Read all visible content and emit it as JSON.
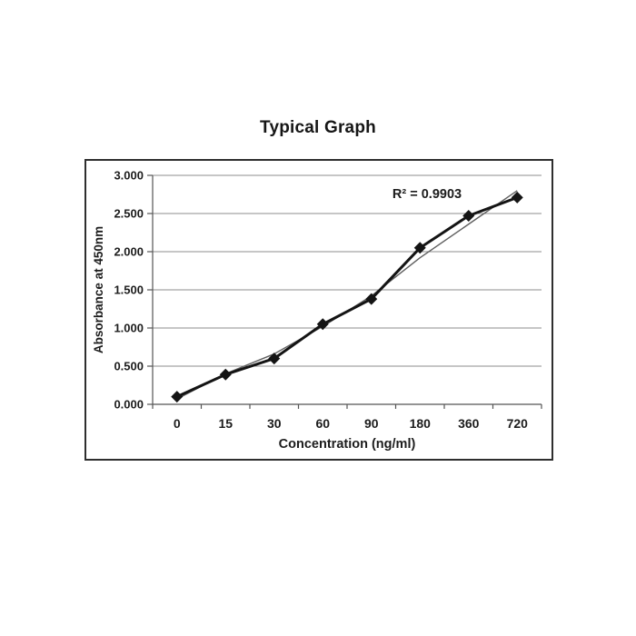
{
  "page_title": "Typical Graph",
  "chart_data": {
    "type": "line",
    "title": "Typical Graph",
    "xlabel": "Concentration (ng/ml)",
    "ylabel": "Absorbance at 450nm",
    "annotation": "R² = 0.9903",
    "categories": [
      "0",
      "15",
      "30",
      "60",
      "90",
      "180",
      "360",
      "720"
    ],
    "series": [
      {
        "name": "Absorbance at 450nm",
        "values": [
          0.1,
          0.39,
          0.6,
          1.05,
          1.38,
          2.05,
          2.47,
          2.71
        ],
        "marker": "diamond",
        "color": "#141414",
        "line_width": 3
      }
    ],
    "trendline": {
      "name": "fit-line",
      "values": [
        0.07,
        0.4,
        0.66,
        1.02,
        1.42,
        1.92,
        2.36,
        2.8
      ],
      "color": "#5f5f5f",
      "line_width": 1.4
    },
    "ylim": [
      0,
      3
    ],
    "ytick_step": 0.5,
    "ytick_labels": [
      "0.000",
      "0.500",
      "1.000",
      "1.500",
      "2.000",
      "2.500",
      "3.000"
    ],
    "grid": true,
    "legend": "none",
    "colors": {
      "text": "#1c1c1c",
      "gridline": "#8c8c8c",
      "axis": "#555555",
      "frame_border": "#2e2e2e",
      "background": "#ffffff"
    }
  }
}
